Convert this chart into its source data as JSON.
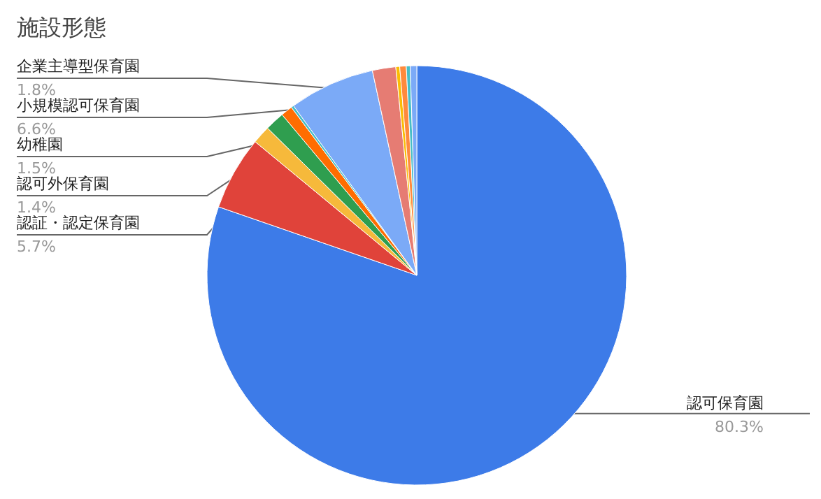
{
  "chart_data": {
    "type": "pie",
    "title": "施設形態",
    "categories": [
      "認可保育園",
      "認証・認定保育園",
      "認可外保育園",
      "幼稚園",
      null,
      null,
      "小規模認可保育園",
      "企業主導型保育園",
      null,
      null,
      null,
      null
    ],
    "values": [
      80.3,
      5.7,
      1.4,
      1.5,
      0.9,
      0.2,
      6.6,
      1.8,
      0.3,
      0.5,
      0.3,
      0.5
    ],
    "colors": [
      "#3d7be8",
      "#e0433a",
      "#f6b93b",
      "#2f9e4f",
      "#ff6d01",
      "#46bdc6",
      "#7baaf7",
      "#e67c73",
      "#fbbc04",
      "#ff8a3d",
      "#46bdc6",
      "#7baaf7"
    ],
    "value_labels": [
      "80.3%",
      "5.7%",
      "1.4%",
      "1.5%",
      null,
      null,
      "6.6%",
      "1.8%",
      null,
      null,
      null,
      null
    ]
  }
}
